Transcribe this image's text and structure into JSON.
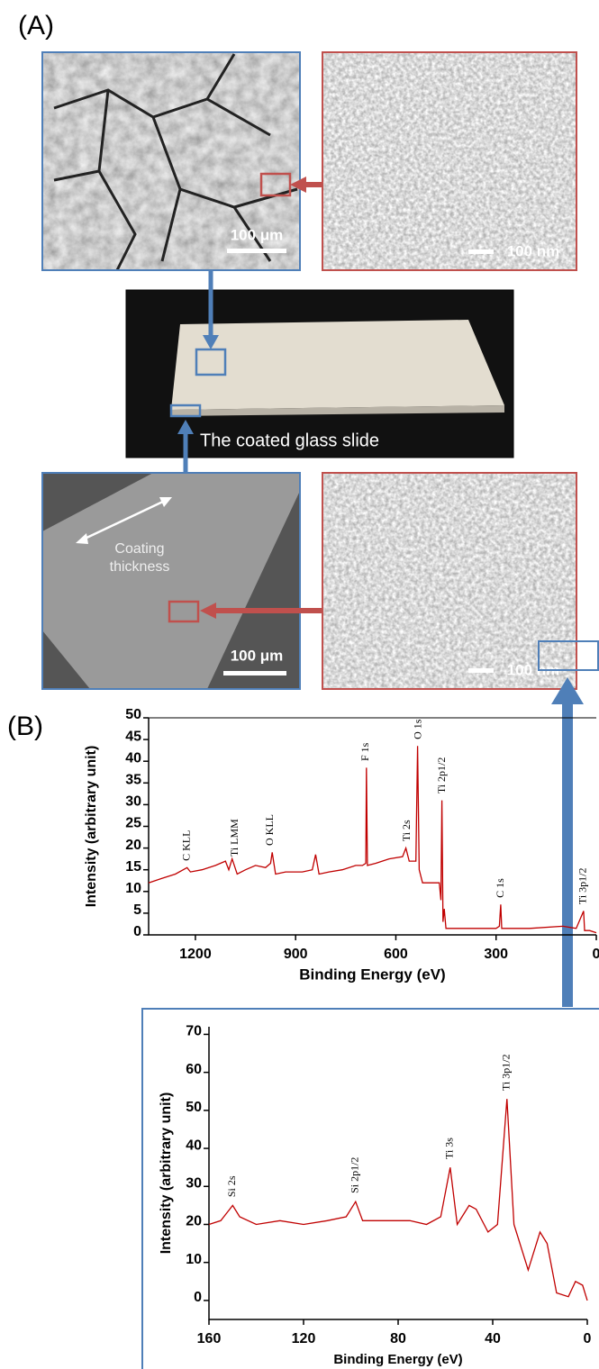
{
  "panel_a": {
    "label": "(A)",
    "scale_bars": [
      "100 μm",
      "100 nm",
      "100 μm",
      "100 nm"
    ],
    "slide_caption": "The coated glass slide",
    "thickness_label": "Coating thickness"
  },
  "panel_b": {
    "label": "(B)"
  },
  "chart_data": [
    {
      "type": "line",
      "xlabel": "Binding Energy (eV)",
      "ylabel": "Intensity (arbitrary unit)",
      "x": [
        1340,
        1300,
        1260,
        1225,
        1215,
        1180,
        1140,
        1110,
        1100,
        1090,
        1075,
        1050,
        1020,
        990,
        975,
        970,
        960,
        930,
        880,
        850,
        840,
        830,
        800,
        760,
        720,
        700,
        690,
        688,
        685,
        660,
        620,
        580,
        570,
        560,
        540,
        535,
        530,
        520,
        470,
        465,
        462,
        459,
        455,
        450,
        400,
        300,
        290,
        286,
        283,
        200,
        100,
        60,
        38,
        35,
        20,
        0
      ],
      "series": [
        {
          "color": "#c00000",
          "values": [
            12,
            13,
            14,
            15.5,
            14.5,
            15,
            16,
            17,
            15,
            17.5,
            14,
            15,
            16,
            15.5,
            16.5,
            19,
            14,
            14.5,
            14.5,
            15,
            18.5,
            14,
            14.5,
            15,
            16,
            16,
            16.5,
            38.5,
            16,
            16.5,
            17.5,
            18,
            20,
            17,
            17,
            43.5,
            15,
            12,
            12,
            8,
            31,
            3,
            6,
            1.5,
            1.5,
            1.5,
            2,
            7,
            1.5,
            1.5,
            2,
            1.5,
            5.5,
            1,
            1,
            0.5
          ]
        }
      ],
      "xlim": [
        1340,
        0
      ],
      "ylim": [
        0,
        50
      ],
      "xticks": [
        1200,
        900,
        600,
        300,
        0
      ],
      "yticks": [
        0,
        5,
        10,
        15,
        20,
        25,
        30,
        35,
        40,
        45,
        50
      ],
      "annotations": [
        {
          "text": "C KLL",
          "x": 1225,
          "y": 16
        },
        {
          "text": "Ti LMM",
          "x": 1080,
          "y": 17
        },
        {
          "text": "O KLL",
          "x": 975,
          "y": 19.5
        },
        {
          "text": "F 1s",
          "x": 690,
          "y": 39
        },
        {
          "text": "Ti 2s",
          "x": 565,
          "y": 20.5
        },
        {
          "text": "O 1s",
          "x": 532,
          "y": 44
        },
        {
          "text": "Ti 2p1/2",
          "x": 460,
          "y": 31.5
        },
        {
          "text": "C 1s",
          "x": 285,
          "y": 7.5
        },
        {
          "text": "Ti 3p1/2",
          "x": 38,
          "y": 6
        }
      ]
    },
    {
      "type": "line",
      "xlabel": "Binding Energy (eV)",
      "ylabel": "Intensity (arbitrary unit)",
      "x": [
        160,
        155,
        150,
        147,
        140,
        130,
        120,
        110,
        102,
        98,
        95,
        85,
        75,
        68,
        62,
        58,
        55,
        50,
        47,
        42,
        38,
        34,
        31,
        25,
        20,
        17,
        13,
        8,
        5,
        2,
        0
      ],
      "series": [
        {
          "color": "#c00000",
          "values": [
            20,
            21,
            25,
            22,
            20,
            21,
            20,
            21,
            22,
            26,
            21,
            21,
            21,
            20,
            22,
            35,
            20,
            25,
            24,
            18,
            20,
            53,
            20,
            8,
            18,
            15,
            2,
            1,
            5,
            4,
            0
          ]
        }
      ],
      "xlim": [
        160,
        0
      ],
      "ylim": [
        -5,
        72
      ],
      "xticks": [
        160,
        120,
        80,
        40,
        0
      ],
      "yticks": [
        0,
        10,
        20,
        30,
        40,
        50,
        60,
        70
      ],
      "annotations": [
        {
          "text": "Si 2s",
          "x": 150,
          "y": 26
        },
        {
          "text": "Si 2p1/2",
          "x": 98,
          "y": 27
        },
        {
          "text": "Ti 3s",
          "x": 58,
          "y": 36
        },
        {
          "text": "Ti 3p1/2",
          "x": 34,
          "y": 54
        }
      ]
    }
  ]
}
